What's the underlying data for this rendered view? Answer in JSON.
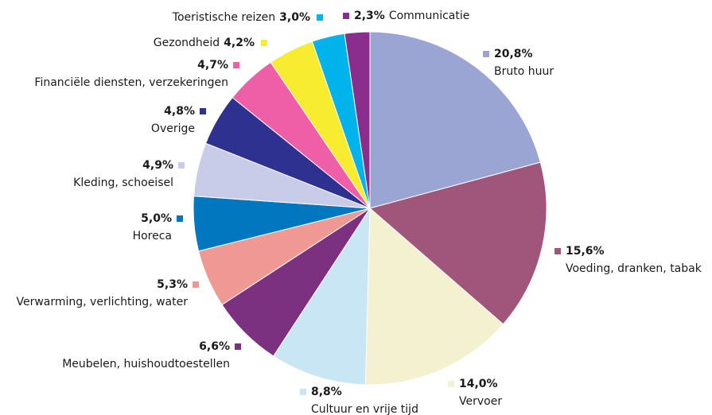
{
  "chart_data": {
    "type": "pie",
    "categories": [
      "Bruto huur",
      "Voeding, dranken, tabak",
      "Vervoer",
      "Cultuur en vrije tijd",
      "Meubelen, huishoudtoestellen",
      "Verwarming, verlichting, water",
      "Horeca",
      "Kleding, schoeisel",
      "Overige",
      "Financiële diensten, verzekeringen",
      "Gezondheid",
      "Toeristische reizen",
      "Communicatie"
    ],
    "values": [
      20.8,
      15.6,
      14.0,
      8.8,
      6.6,
      5.3,
      5.0,
      4.9,
      4.8,
      4.7,
      4.2,
      3.0,
      2.3
    ],
    "value_labels": [
      "20,8%",
      "15,6%",
      "14,0%",
      "8,8%",
      "6,6%",
      "5,3%",
      "5,0%",
      "4,9%",
      "4,8%",
      "4,7%",
      "4,2%",
      "3,0%",
      "2,3%"
    ],
    "colors": [
      "#9ba5d3",
      "#a0567a",
      "#f3f1d0",
      "#c8e6f3",
      "#7b3080",
      "#ef9894",
      "#0077bf",
      "#c8cce8",
      "#2e3190",
      "#ee5fa7",
      "#f7ec2f",
      "#00b3ea",
      "#8b2d8d"
    ]
  }
}
